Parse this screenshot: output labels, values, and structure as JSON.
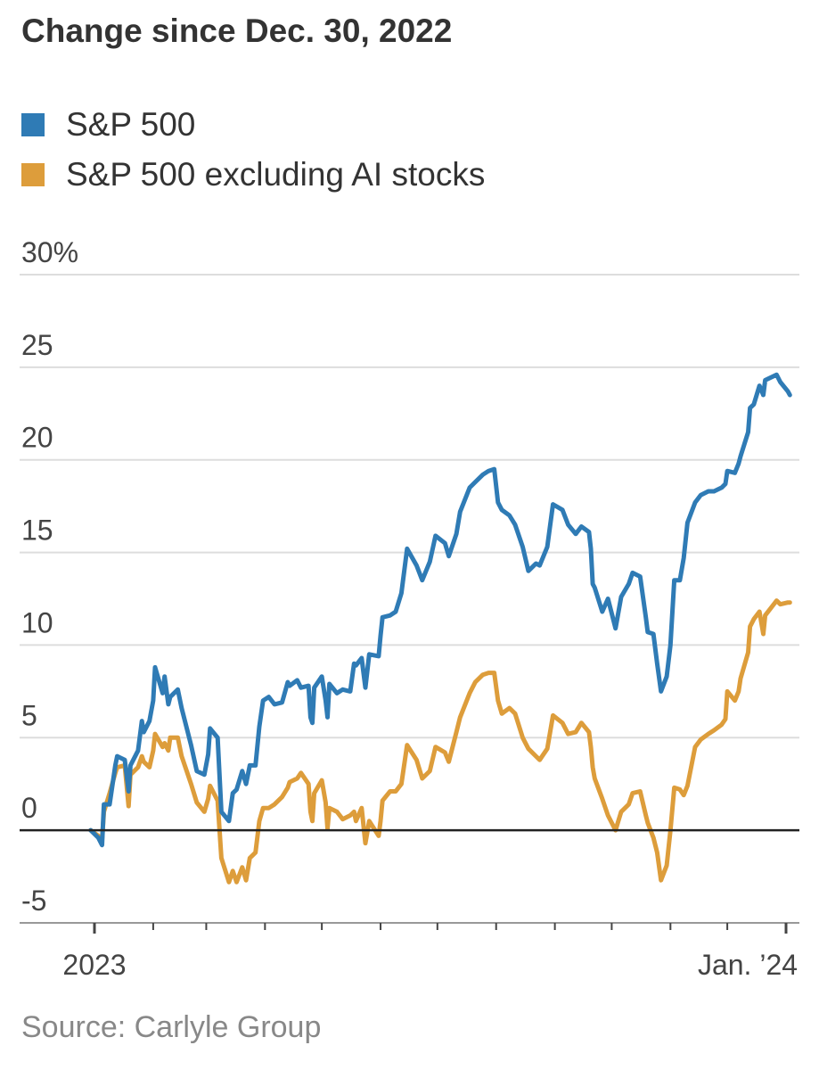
{
  "chart_data": {
    "type": "line",
    "title": "Change since Dec. 30, 2022",
    "source": "Source: Carlyle Group",
    "ylim": [
      -5,
      30
    ],
    "y_ticks": [
      -5,
      0,
      5,
      10,
      15,
      20,
      25,
      30
    ],
    "y_tick_labels": [
      "-5",
      "0",
      "5",
      "10",
      "15",
      "20",
      "25",
      "30%"
    ],
    "x_labels": [
      "2023",
      "Jan. ’24"
    ],
    "x_label_dates": [
      "2023-01-01",
      "2024-01-01"
    ],
    "grid": "horizontal",
    "legend_position": "top-left",
    "zero_line": true,
    "series": [
      {
        "name": "S&P 500",
        "color": "#2f7bb5",
        "points": [
          [
            "2022-12-30",
            0
          ],
          [
            "2023-01-03",
            -0.4
          ],
          [
            "2023-01-05",
            -0.8
          ],
          [
            "2023-01-06",
            1.4
          ],
          [
            "2023-01-09",
            1.4
          ],
          [
            "2023-01-12",
            3.5
          ],
          [
            "2023-01-13",
            4.0
          ],
          [
            "2023-01-17",
            3.8
          ],
          [
            "2023-01-19",
            2.1
          ],
          [
            "2023-01-20",
            3.5
          ],
          [
            "2023-01-24",
            4.3
          ],
          [
            "2023-01-26",
            5.9
          ],
          [
            "2023-01-27",
            5.3
          ],
          [
            "2023-01-30",
            5.9
          ],
          [
            "2023-02-01",
            7.0
          ],
          [
            "2023-02-02",
            8.8
          ],
          [
            "2023-02-06",
            7.4
          ],
          [
            "2023-02-07",
            8.3
          ],
          [
            "2023-02-09",
            6.8
          ],
          [
            "2023-02-10",
            7.2
          ],
          [
            "2023-02-14",
            7.6
          ],
          [
            "2023-02-16",
            6.6
          ],
          [
            "2023-02-21",
            4.6
          ],
          [
            "2023-02-24",
            3.2
          ],
          [
            "2023-02-28",
            3.0
          ],
          [
            "2023-03-02",
            4.1
          ],
          [
            "2023-03-03",
            5.5
          ],
          [
            "2023-03-07",
            5.0
          ],
          [
            "2023-03-09",
            1.0
          ],
          [
            "2023-03-13",
            0.5
          ],
          [
            "2023-03-15",
            2.0
          ],
          [
            "2023-03-17",
            2.2
          ],
          [
            "2023-03-20",
            3.2
          ],
          [
            "2023-03-22",
            2.5
          ],
          [
            "2023-03-24",
            3.5
          ],
          [
            "2023-03-27",
            3.5
          ],
          [
            "2023-03-29",
            5.6
          ],
          [
            "2023-03-31",
            7.0
          ],
          [
            "2023-04-03",
            7.2
          ],
          [
            "2023-04-06",
            6.8
          ],
          [
            "2023-04-10",
            6.9
          ],
          [
            "2023-04-13",
            8.0
          ],
          [
            "2023-04-14",
            7.8
          ],
          [
            "2023-04-18",
            8.1
          ],
          [
            "2023-04-20",
            7.7
          ],
          [
            "2023-04-24",
            7.8
          ],
          [
            "2023-04-25",
            6.1
          ],
          [
            "2023-04-26",
            5.8
          ],
          [
            "2023-04-27",
            7.7
          ],
          [
            "2023-05-01",
            8.3
          ],
          [
            "2023-05-03",
            7.0
          ],
          [
            "2023-05-04",
            6.1
          ],
          [
            "2023-05-05",
            7.9
          ],
          [
            "2023-05-09",
            7.4
          ],
          [
            "2023-05-12",
            7.6
          ],
          [
            "2023-05-16",
            7.5
          ],
          [
            "2023-05-18",
            9.0
          ],
          [
            "2023-05-19",
            8.9
          ],
          [
            "2023-05-22",
            9.3
          ],
          [
            "2023-05-24",
            7.7
          ],
          [
            "2023-05-26",
            9.5
          ],
          [
            "2023-05-31",
            9.4
          ],
          [
            "2023-06-01",
            10.5
          ],
          [
            "2023-06-02",
            11.5
          ],
          [
            "2023-06-06",
            11.6
          ],
          [
            "2023-06-09",
            11.8
          ],
          [
            "2023-06-12",
            12.8
          ],
          [
            "2023-06-15",
            15.2
          ],
          [
            "2023-06-20",
            14.3
          ],
          [
            "2023-06-23",
            13.5
          ],
          [
            "2023-06-27",
            14.5
          ],
          [
            "2023-06-30",
            15.9
          ],
          [
            "2023-07-05",
            15.5
          ],
          [
            "2023-07-07",
            14.8
          ],
          [
            "2023-07-11",
            16.0
          ],
          [
            "2023-07-13",
            17.2
          ],
          [
            "2023-07-18",
            18.5
          ],
          [
            "2023-07-21",
            18.8
          ],
          [
            "2023-07-25",
            19.2
          ],
          [
            "2023-07-28",
            19.4
          ],
          [
            "2023-07-31",
            19.5
          ],
          [
            "2023-08-02",
            17.7
          ],
          [
            "2023-08-04",
            17.3
          ],
          [
            "2023-08-08",
            17.0
          ],
          [
            "2023-08-11",
            16.5
          ],
          [
            "2023-08-15",
            15.3
          ],
          [
            "2023-08-18",
            14.0
          ],
          [
            "2023-08-22",
            14.4
          ],
          [
            "2023-08-24",
            14.3
          ],
          [
            "2023-08-28",
            15.3
          ],
          [
            "2023-08-31",
            17.6
          ],
          [
            "2023-09-05",
            17.3
          ],
          [
            "2023-09-08",
            16.5
          ],
          [
            "2023-09-12",
            16.0
          ],
          [
            "2023-09-15",
            16.4
          ],
          [
            "2023-09-19",
            16.1
          ],
          [
            "2023-09-20",
            15.2
          ],
          [
            "2023-09-21",
            13.3
          ],
          [
            "2023-09-22",
            13.1
          ],
          [
            "2023-09-26",
            11.8
          ],
          [
            "2023-09-29",
            12.5
          ],
          [
            "2023-10-03",
            10.9
          ],
          [
            "2023-10-06",
            12.6
          ],
          [
            "2023-10-10",
            13.3
          ],
          [
            "2023-10-12",
            13.9
          ],
          [
            "2023-10-16",
            13.7
          ],
          [
            "2023-10-19",
            11.5
          ],
          [
            "2023-10-20",
            10.7
          ],
          [
            "2023-10-23",
            10.6
          ],
          [
            "2023-10-25",
            9.0
          ],
          [
            "2023-10-27",
            7.5
          ],
          [
            "2023-10-30",
            8.3
          ],
          [
            "2023-11-01",
            10.0
          ],
          [
            "2023-11-03",
            13.5
          ],
          [
            "2023-11-06",
            13.5
          ],
          [
            "2023-11-08",
            14.7
          ],
          [
            "2023-11-10",
            16.6
          ],
          [
            "2023-11-14",
            17.7
          ],
          [
            "2023-11-17",
            18.1
          ],
          [
            "2023-11-21",
            18.3
          ],
          [
            "2023-11-24",
            18.3
          ],
          [
            "2023-11-28",
            18.5
          ],
          [
            "2023-11-30",
            18.7
          ],
          [
            "2023-12-01",
            19.4
          ],
          [
            "2023-12-05",
            19.3
          ],
          [
            "2023-12-07",
            19.8
          ],
          [
            "2023-12-08",
            20.2
          ],
          [
            "2023-12-12",
            21.5
          ],
          [
            "2023-12-13",
            22.8
          ],
          [
            "2023-12-15",
            23.0
          ],
          [
            "2023-12-18",
            24.0
          ],
          [
            "2023-12-20",
            23.5
          ],
          [
            "2023-12-21",
            24.3
          ],
          [
            "2023-12-27",
            24.6
          ],
          [
            "2023-12-29",
            24.2
          ],
          [
            "2024-01-02",
            23.7
          ],
          [
            "2024-01-03",
            23.5
          ]
        ]
      },
      {
        "name": "S&P 500 excluding AI stocks",
        "color": "#dd9d3b",
        "points": [
          [
            "2022-12-30",
            0
          ],
          [
            "2023-01-03",
            -0.3
          ],
          [
            "2023-01-05",
            -0.5
          ],
          [
            "2023-01-06",
            1.0
          ],
          [
            "2023-01-09",
            2.0
          ],
          [
            "2023-01-12",
            3.1
          ],
          [
            "2023-01-13",
            3.4
          ],
          [
            "2023-01-17",
            3.5
          ],
          [
            "2023-01-19",
            1.3
          ],
          [
            "2023-01-20",
            3.0
          ],
          [
            "2023-01-24",
            3.4
          ],
          [
            "2023-01-26",
            4.0
          ],
          [
            "2023-01-27",
            3.7
          ],
          [
            "2023-01-30",
            3.4
          ],
          [
            "2023-02-01",
            4.3
          ],
          [
            "2023-02-02",
            5.2
          ],
          [
            "2023-02-06",
            4.5
          ],
          [
            "2023-02-07",
            4.7
          ],
          [
            "2023-02-09",
            4.3
          ],
          [
            "2023-02-10",
            5.0
          ],
          [
            "2023-02-14",
            5.0
          ],
          [
            "2023-02-16",
            4.0
          ],
          [
            "2023-02-21",
            2.5
          ],
          [
            "2023-02-24",
            1.5
          ],
          [
            "2023-02-28",
            1.0
          ],
          [
            "2023-03-02",
            1.7
          ],
          [
            "2023-03-03",
            2.4
          ],
          [
            "2023-03-07",
            1.6
          ],
          [
            "2023-03-09",
            -1.5
          ],
          [
            "2023-03-13",
            -2.8
          ],
          [
            "2023-03-15",
            -2.2
          ],
          [
            "2023-03-17",
            -2.8
          ],
          [
            "2023-03-20",
            -2.0
          ],
          [
            "2023-03-22",
            -2.7
          ],
          [
            "2023-03-24",
            -1.5
          ],
          [
            "2023-03-27",
            -1.2
          ],
          [
            "2023-03-29",
            0.5
          ],
          [
            "2023-03-31",
            1.2
          ],
          [
            "2023-04-03",
            1.2
          ],
          [
            "2023-04-06",
            1.4
          ],
          [
            "2023-04-10",
            1.8
          ],
          [
            "2023-04-13",
            2.3
          ],
          [
            "2023-04-14",
            2.6
          ],
          [
            "2023-04-18",
            2.8
          ],
          [
            "2023-04-20",
            3.1
          ],
          [
            "2023-04-24",
            2.5
          ],
          [
            "2023-04-25",
            1.0
          ],
          [
            "2023-04-26",
            0.5
          ],
          [
            "2023-04-27",
            2.0
          ],
          [
            "2023-05-01",
            2.7
          ],
          [
            "2023-05-03",
            1.5
          ],
          [
            "2023-05-04",
            0.1
          ],
          [
            "2023-05-05",
            1.2
          ],
          [
            "2023-05-09",
            1.0
          ],
          [
            "2023-05-12",
            0.6
          ],
          [
            "2023-05-16",
            0.8
          ],
          [
            "2023-05-18",
            1.0
          ],
          [
            "2023-05-19",
            0.5
          ],
          [
            "2023-05-22",
            1.2
          ],
          [
            "2023-05-24",
            -0.7
          ],
          [
            "2023-05-26",
            0.5
          ],
          [
            "2023-05-31",
            -0.3
          ],
          [
            "2023-06-01",
            0.5
          ],
          [
            "2023-06-02",
            1.6
          ],
          [
            "2023-06-06",
            2.1
          ],
          [
            "2023-06-09",
            2.1
          ],
          [
            "2023-06-12",
            2.5
          ],
          [
            "2023-06-15",
            4.6
          ],
          [
            "2023-06-20",
            3.8
          ],
          [
            "2023-06-23",
            2.8
          ],
          [
            "2023-06-27",
            3.2
          ],
          [
            "2023-06-30",
            4.5
          ],
          [
            "2023-07-05",
            4.2
          ],
          [
            "2023-07-07",
            3.7
          ],
          [
            "2023-07-11",
            5.3
          ],
          [
            "2023-07-13",
            6.1
          ],
          [
            "2023-07-18",
            7.4
          ],
          [
            "2023-07-21",
            8.0
          ],
          [
            "2023-07-25",
            8.4
          ],
          [
            "2023-07-28",
            8.5
          ],
          [
            "2023-07-31",
            8.5
          ],
          [
            "2023-08-02",
            7.0
          ],
          [
            "2023-08-04",
            6.3
          ],
          [
            "2023-08-08",
            6.6
          ],
          [
            "2023-08-11",
            6.3
          ],
          [
            "2023-08-15",
            5.0
          ],
          [
            "2023-08-18",
            4.4
          ],
          [
            "2023-08-22",
            4.0
          ],
          [
            "2023-08-24",
            3.8
          ],
          [
            "2023-08-28",
            4.4
          ],
          [
            "2023-08-31",
            6.2
          ],
          [
            "2023-09-05",
            5.8
          ],
          [
            "2023-09-08",
            5.2
          ],
          [
            "2023-09-12",
            5.3
          ],
          [
            "2023-09-15",
            5.8
          ],
          [
            "2023-09-19",
            5.3
          ],
          [
            "2023-09-20",
            4.5
          ],
          [
            "2023-09-21",
            3.4
          ],
          [
            "2023-09-22",
            2.8
          ],
          [
            "2023-09-26",
            1.7
          ],
          [
            "2023-09-29",
            0.8
          ],
          [
            "2023-10-03",
            0.0
          ],
          [
            "2023-10-06",
            1.0
          ],
          [
            "2023-10-10",
            1.4
          ],
          [
            "2023-10-12",
            2.0
          ],
          [
            "2023-10-16",
            2.1
          ],
          [
            "2023-10-19",
            0.8
          ],
          [
            "2023-10-20",
            0.4
          ],
          [
            "2023-10-23",
            -0.4
          ],
          [
            "2023-10-25",
            -1.2
          ],
          [
            "2023-10-27",
            -2.7
          ],
          [
            "2023-10-30",
            -1.9
          ],
          [
            "2023-11-01",
            0.0
          ],
          [
            "2023-11-03",
            2.3
          ],
          [
            "2023-11-06",
            2.2
          ],
          [
            "2023-11-08",
            1.9
          ],
          [
            "2023-11-10",
            2.4
          ],
          [
            "2023-11-14",
            4.5
          ],
          [
            "2023-11-17",
            4.9
          ],
          [
            "2023-11-21",
            5.2
          ],
          [
            "2023-11-24",
            5.4
          ],
          [
            "2023-11-28",
            5.7
          ],
          [
            "2023-11-30",
            6.0
          ],
          [
            "2023-12-01",
            7.5
          ],
          [
            "2023-12-05",
            7.0
          ],
          [
            "2023-12-07",
            7.5
          ],
          [
            "2023-12-08",
            8.2
          ],
          [
            "2023-12-12",
            9.6
          ],
          [
            "2023-12-13",
            11.0
          ],
          [
            "2023-12-15",
            11.4
          ],
          [
            "2023-12-18",
            11.8
          ],
          [
            "2023-12-20",
            10.6
          ],
          [
            "2023-12-21",
            11.6
          ],
          [
            "2023-12-27",
            12.4
          ],
          [
            "2023-12-29",
            12.2
          ],
          [
            "2024-01-02",
            12.3
          ],
          [
            "2024-01-03",
            12.3
          ]
        ]
      }
    ]
  }
}
